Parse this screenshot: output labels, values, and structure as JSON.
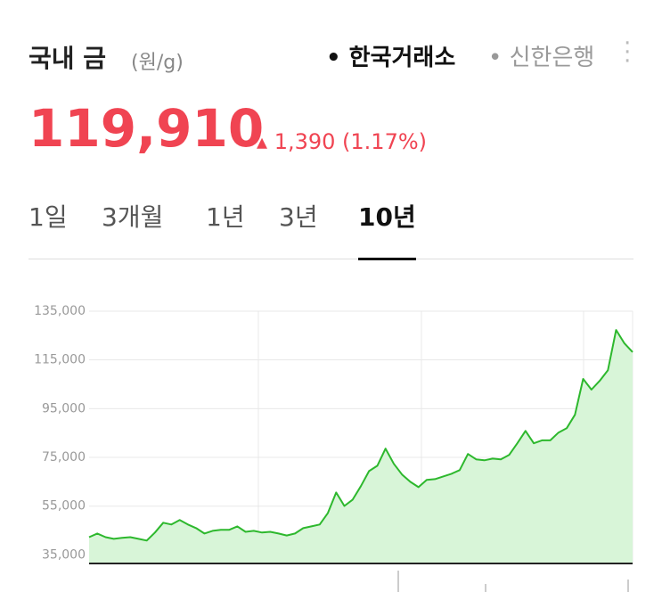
{
  "header": {
    "title": "국내 금",
    "unit": "(원/g)",
    "sources": [
      "한국거래소",
      "신한은행"
    ]
  },
  "price": {
    "value": "119,910",
    "change": "1,390",
    "change_pct": "(1.17%)"
  },
  "tabs": [
    "1일",
    "3개월",
    "1년",
    "3년",
    "10년"
  ],
  "chart_data": {
    "type": "line",
    "color": "#2db82d",
    "area_color": "#d8f5d8",
    "values": [
      42300,
      43800,
      42300,
      41600,
      42000,
      42300,
      41600,
      40900,
      44200,
      48200,
      47500,
      49300,
      47500,
      46000,
      43800,
      44900,
      45300,
      45300,
      46700,
      44500,
      44900,
      44200,
      44500,
      43800,
      43000,
      43800,
      46000,
      46700,
      47500,
      52200,
      60600,
      55100,
      57700,
      63200,
      69400,
      71600,
      78600,
      72400,
      68000,
      65000,
      62800,
      65800,
      66100,
      67200,
      68300,
      69800,
      76400,
      74200,
      73800,
      74500,
      74200,
      76000,
      80800,
      85900,
      80800,
      82000,
      82000,
      85200,
      87000,
      92500,
      107200,
      102800,
      106400,
      110800,
      127300,
      121800,
      118200
    ],
    "ylim": [
      31500,
      135000
    ],
    "yticks": [
      {
        "value": 35000,
        "label": "35,000"
      },
      {
        "value": 55000,
        "label": "55,000"
      },
      {
        "value": 75000,
        "label": "75,000"
      },
      {
        "value": 95000,
        "label": "95,000"
      },
      {
        "value": 115000,
        "label": "115,000"
      },
      {
        "value": 135000,
        "label": "135,000"
      }
    ],
    "grid": true
  }
}
